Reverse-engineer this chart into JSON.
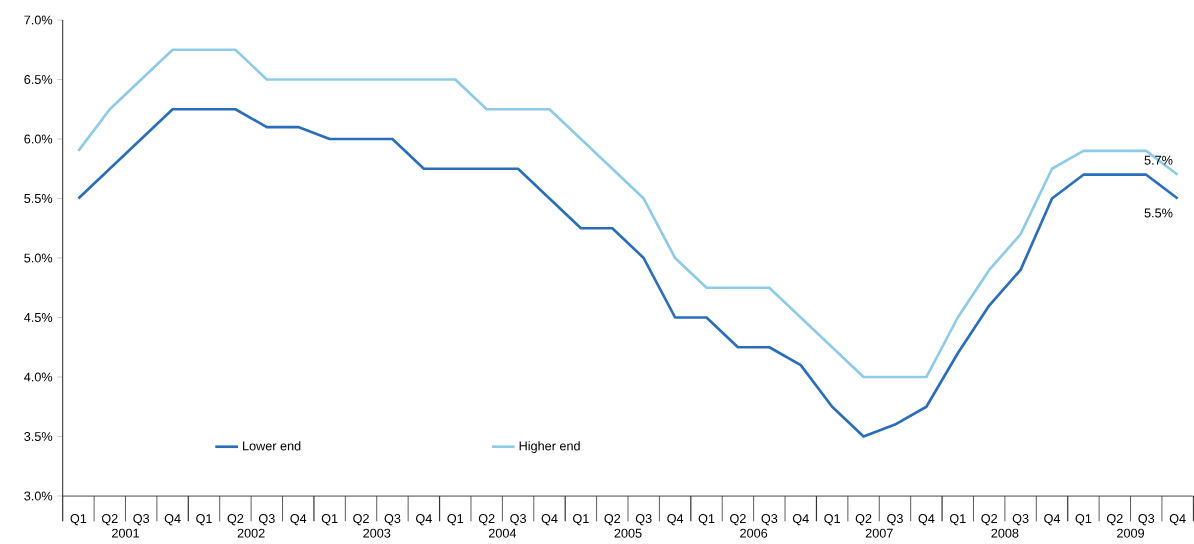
{
  "chart_data": {
    "type": "line",
    "categories": [
      "Q1",
      "Q2",
      "Q3",
      "Q4",
      "Q1",
      "Q2",
      "Q3",
      "Q4",
      "Q1",
      "Q2",
      "Q3",
      "Q4",
      "Q1",
      "Q2",
      "Q3",
      "Q4",
      "Q1",
      "Q2",
      "Q3",
      "Q4",
      "Q1",
      "Q2",
      "Q3",
      "Q4",
      "Q1",
      "Q2",
      "Q3",
      "Q4",
      "Q1",
      "Q2",
      "Q3",
      "Q4",
      "Q1",
      "Q2",
      "Q3",
      "Q4"
    ],
    "annotations": [
      "2001",
      "2002",
      "2003",
      "2004",
      "2005",
      "2006",
      "2007",
      "2008",
      "2009"
    ],
    "series": [
      {
        "name": "Lower end",
        "color": "#2a6ebb",
        "values": [
          5.5,
          5.75,
          6.0,
          6.25,
          6.25,
          6.25,
          6.1,
          6.1,
          6.0,
          6.0,
          6.0,
          5.75,
          5.75,
          5.75,
          5.75,
          5.5,
          5.25,
          5.25,
          5.0,
          4.5,
          4.5,
          4.25,
          4.25,
          4.1,
          3.75,
          3.5,
          3.6,
          3.75,
          4.2,
          4.6,
          4.9,
          5.5,
          5.7,
          5.7,
          5.7,
          5.5
        ],
        "value_labels": [
          null,
          null,
          null,
          null,
          null,
          null,
          null,
          null,
          null,
          null,
          null,
          null,
          null,
          null,
          null,
          null,
          null,
          null,
          null,
          null,
          null,
          null,
          null,
          null,
          null,
          null,
          null,
          null,
          null,
          null,
          null,
          null,
          null,
          null,
          null,
          "5.5%"
        ]
      },
      {
        "name": "Higher end",
        "color": "#8fcbe8",
        "values": [
          5.9,
          6.25,
          6.5,
          6.75,
          6.75,
          6.75,
          6.5,
          6.5,
          6.5,
          6.5,
          6.5,
          6.5,
          6.5,
          6.25,
          6.25,
          6.25,
          6.0,
          5.75,
          5.5,
          5.0,
          4.75,
          4.75,
          4.75,
          4.5,
          4.25,
          4.0,
          4.0,
          4.0,
          4.5,
          4.9,
          5.2,
          5.75,
          5.9,
          5.9,
          5.9,
          5.7
        ],
        "value_labels": [
          null,
          null,
          null,
          null,
          null,
          null,
          null,
          null,
          null,
          null,
          null,
          null,
          null,
          null,
          null,
          null,
          null,
          null,
          null,
          null,
          null,
          null,
          null,
          null,
          null,
          null,
          null,
          null,
          null,
          null,
          null,
          null,
          null,
          null,
          null,
          "5.7%"
        ]
      }
    ],
    "ylim": [
      3.0,
      7.0
    ],
    "yticks": [
      {
        "value": 3.0,
        "label": "3.0%"
      },
      {
        "value": 3.5,
        "label": "3.5%"
      },
      {
        "value": 4.0,
        "label": "4.0%"
      },
      {
        "value": 4.5,
        "label": "4.5%"
      },
      {
        "value": 5.0,
        "label": "5.0%"
      },
      {
        "value": 5.5,
        "label": "5.5%"
      },
      {
        "value": 6.0,
        "label": "6.0%"
      },
      {
        "value": 6.5,
        "label": "6.5%"
      },
      {
        "value": 7.0,
        "label": "7.0%"
      }
    ],
    "legend": "bottom",
    "marker": "none",
    "line_style": "solid",
    "grid": false
  }
}
